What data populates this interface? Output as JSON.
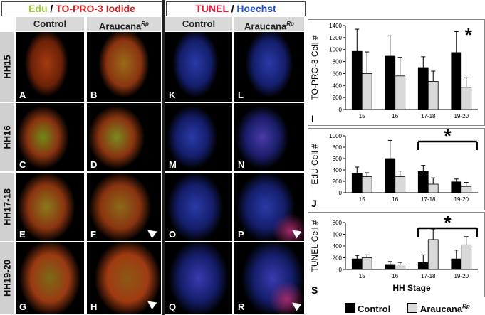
{
  "headers": {
    "edu": "Edu",
    "slash": " / ",
    "topro": "TO-PRO-3 Iodide",
    "tunel": "TUNEL",
    "hoechst": "Hoechst"
  },
  "columns": {
    "control": "Control",
    "araucana": "Araucana",
    "araucana_sup": "Rp"
  },
  "rows": [
    "HH15",
    "HH16",
    "HH17-18",
    "HH19-20"
  ],
  "panels": {
    "left_control": [
      "A",
      "C",
      "E",
      "G"
    ],
    "left_araucana": [
      "B",
      "D",
      "F",
      "H"
    ],
    "right_control": [
      "K",
      "M",
      "O",
      "Q"
    ],
    "right_araucana": [
      "L",
      "N",
      "P",
      "R"
    ]
  },
  "legend": {
    "control": "Control",
    "araucana": "Araucana",
    "araucana_sup": "Rp"
  },
  "colors": {
    "control_bar": "#000000",
    "araucana_bar": "#d9d9d9",
    "edu_text": "#9acd32",
    "topro_text": "#d32020",
    "tunel_text": "#e8183a",
    "hoechst_text": "#2050d8"
  },
  "chart_data": [
    {
      "type": "bar",
      "panel_label": "I",
      "ylabel": "TO-PRO-3 Cell #",
      "categories": [
        "15",
        "16",
        "17-18",
        "19-20"
      ],
      "ylim": [
        0,
        1400
      ],
      "yticks": [
        0,
        200,
        400,
        600,
        800,
        1000,
        1200,
        1400
      ],
      "series": [
        {
          "name": "Control",
          "values": [
            970,
            890,
            700,
            950
          ],
          "errors": [
            370,
            340,
            180,
            350
          ]
        },
        {
          "name": "Araucana",
          "values": [
            600,
            560,
            470,
            370
          ],
          "errors": [
            360,
            310,
            170,
            160
          ]
        }
      ],
      "annotation": "*",
      "annotation_category": "19-20",
      "bracket": false
    },
    {
      "type": "bar",
      "panel_label": "J",
      "ylabel": "EdU Cell #",
      "categories": [
        "15",
        "16",
        "17-18",
        "19-20"
      ],
      "ylim": [
        0,
        1000
      ],
      "yticks": [
        0,
        200,
        400,
        600,
        800,
        1000
      ],
      "series": [
        {
          "name": "Control",
          "values": [
            340,
            600,
            370,
            190
          ],
          "errors": [
            110,
            320,
            110,
            50
          ]
        },
        {
          "name": "Araucana",
          "values": [
            280,
            280,
            150,
            110
          ],
          "errors": [
            70,
            100,
            110,
            70
          ]
        }
      ],
      "annotation": "*",
      "bracket": true,
      "bracket_from": "17-18",
      "bracket_to": "19-20"
    },
    {
      "type": "bar",
      "panel_label": "S",
      "ylabel": "TUNEL Cell #",
      "xlabel": "HH Stage",
      "categories": [
        "15",
        "16",
        "17-18",
        "19-20"
      ],
      "ylim": [
        0,
        800
      ],
      "yticks": [
        0,
        200,
        400,
        600,
        800
      ],
      "series": [
        {
          "name": "Control",
          "values": [
            180,
            85,
            120,
            180
          ],
          "errors": [
            60,
            50,
            130,
            150
          ]
        },
        {
          "name": "Araucana",
          "values": [
            200,
            80,
            510,
            420
          ],
          "errors": [
            50,
            40,
            180,
            140
          ]
        }
      ],
      "annotation": "*",
      "bracket": true,
      "bracket_from": "17-18",
      "bracket_to": "19-20"
    }
  ]
}
